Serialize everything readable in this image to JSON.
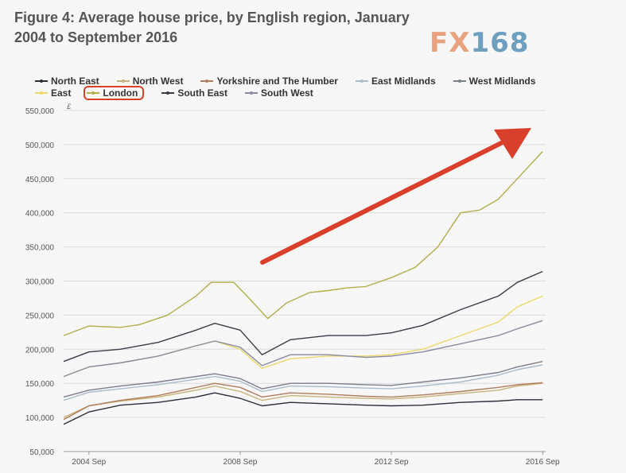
{
  "title": "Figure 4: Average house price, by English region, January 2004 to September 2016",
  "logo": {
    "fx": "FX",
    "num": "168"
  },
  "chart_data": {
    "type": "line",
    "title": "Figure 4: Average house price, by English region, January 2004 to September 2016",
    "ylabel": "£",
    "ylim": [
      50000,
      550000
    ],
    "yticks": [
      "50,000",
      "100,000",
      "150,000",
      "200,000",
      "250,000",
      "300,000",
      "350,000",
      "400,000",
      "450,000",
      "500,000",
      "550,000"
    ],
    "xticks": [
      "2004 Sep",
      "2008 Sep",
      "2012 Sep",
      "2016 Sep"
    ],
    "xlim": [
      2004.0,
      2016.75
    ],
    "xtick_values": [
      2004.67,
      2008.67,
      2012.67,
      2016.67
    ],
    "grid": true,
    "legend_position": "top",
    "annotations": [
      "arrow pointing up-right toward 2016 Sep",
      "London highlighted in legend"
    ],
    "series": [
      {
        "name": "North East",
        "color": "#2b2f3a",
        "points": [
          [
            2004.0,
            90000
          ],
          [
            2004.67,
            108000
          ],
          [
            2005.5,
            118000
          ],
          [
            2006.5,
            122000
          ],
          [
            2007.5,
            130000
          ],
          [
            2008.0,
            136000
          ],
          [
            2008.67,
            128000
          ],
          [
            2009.25,
            117000
          ],
          [
            2010.0,
            122000
          ],
          [
            2011.0,
            120000
          ],
          [
            2012.0,
            118000
          ],
          [
            2012.67,
            117000
          ],
          [
            2013.5,
            118000
          ],
          [
            2014.5,
            122000
          ],
          [
            2015.5,
            124000
          ],
          [
            2016.0,
            126000
          ],
          [
            2016.67,
            126000
          ]
        ]
      },
      {
        "name": "North West",
        "color": "#c9b27a",
        "points": [
          [
            2004.0,
            100000
          ],
          [
            2004.67,
            117000
          ],
          [
            2005.5,
            124000
          ],
          [
            2006.5,
            130000
          ],
          [
            2007.5,
            140000
          ],
          [
            2008.0,
            146000
          ],
          [
            2008.67,
            138000
          ],
          [
            2009.25,
            125000
          ],
          [
            2010.0,
            132000
          ],
          [
            2011.0,
            130000
          ],
          [
            2012.0,
            128000
          ],
          [
            2012.67,
            127000
          ],
          [
            2013.5,
            130000
          ],
          [
            2014.5,
            135000
          ],
          [
            2015.5,
            140000
          ],
          [
            2016.0,
            146000
          ],
          [
            2016.67,
            150000
          ]
        ]
      },
      {
        "name": "Yorkshire and The Humber",
        "color": "#b07c5a",
        "points": [
          [
            2004.0,
            97000
          ],
          [
            2004.67,
            117000
          ],
          [
            2005.5,
            125000
          ],
          [
            2006.5,
            132000
          ],
          [
            2007.5,
            144000
          ],
          [
            2008.0,
            150000
          ],
          [
            2008.67,
            144000
          ],
          [
            2009.25,
            130000
          ],
          [
            2010.0,
            136000
          ],
          [
            2011.0,
            134000
          ],
          [
            2012.0,
            131000
          ],
          [
            2012.67,
            130000
          ],
          [
            2013.5,
            133000
          ],
          [
            2014.5,
            138000
          ],
          [
            2015.5,
            144000
          ],
          [
            2016.0,
            148000
          ],
          [
            2016.67,
            151000
          ]
        ]
      },
      {
        "name": "East Midlands",
        "color": "#a9bccb",
        "points": [
          [
            2004.0,
            125000
          ],
          [
            2004.67,
            137000
          ],
          [
            2005.5,
            142000
          ],
          [
            2006.5,
            148000
          ],
          [
            2007.5,
            156000
          ],
          [
            2008.0,
            160000
          ],
          [
            2008.67,
            153000
          ],
          [
            2009.25,
            138000
          ],
          [
            2010.0,
            146000
          ],
          [
            2011.0,
            145000
          ],
          [
            2012.0,
            143000
          ],
          [
            2012.67,
            142000
          ],
          [
            2013.5,
            146000
          ],
          [
            2014.5,
            152000
          ],
          [
            2015.5,
            162000
          ],
          [
            2016.0,
            170000
          ],
          [
            2016.67,
            177000
          ]
        ]
      },
      {
        "name": "West Midlands",
        "color": "#7a7f8c",
        "points": [
          [
            2004.0,
            130000
          ],
          [
            2004.67,
            140000
          ],
          [
            2005.5,
            146000
          ],
          [
            2006.5,
            152000
          ],
          [
            2007.5,
            160000
          ],
          [
            2008.0,
            164000
          ],
          [
            2008.67,
            157000
          ],
          [
            2009.25,
            142000
          ],
          [
            2010.0,
            150000
          ],
          [
            2011.0,
            150000
          ],
          [
            2012.0,
            148000
          ],
          [
            2012.67,
            147000
          ],
          [
            2013.5,
            152000
          ],
          [
            2014.5,
            158000
          ],
          [
            2015.5,
            166000
          ],
          [
            2016.0,
            174000
          ],
          [
            2016.67,
            182000
          ]
        ]
      },
      {
        "name": "East",
        "color": "#ecd86a",
        "points": [
          [
            2004.0,
            160000
          ],
          [
            2004.67,
            174000
          ],
          [
            2005.5,
            180000
          ],
          [
            2006.5,
            190000
          ],
          [
            2007.5,
            205000
          ],
          [
            2008.0,
            212000
          ],
          [
            2008.67,
            200000
          ],
          [
            2009.25,
            172000
          ],
          [
            2010.0,
            186000
          ],
          [
            2011.0,
            190000
          ],
          [
            2012.0,
            190000
          ],
          [
            2012.67,
            192000
          ],
          [
            2013.5,
            200000
          ],
          [
            2014.5,
            220000
          ],
          [
            2015.5,
            240000
          ],
          [
            2016.0,
            262000
          ],
          [
            2016.67,
            278000
          ]
        ]
      },
      {
        "name": "London",
        "color": "#b3ad4a",
        "points": [
          [
            2004.0,
            220000
          ],
          [
            2004.67,
            234000
          ],
          [
            2005.5,
            232000
          ],
          [
            2006.0,
            236000
          ],
          [
            2006.75,
            250000
          ],
          [
            2007.5,
            278000
          ],
          [
            2007.9,
            298000
          ],
          [
            2008.5,
            298000
          ],
          [
            2008.9,
            275000
          ],
          [
            2009.4,
            245000
          ],
          [
            2009.9,
            268000
          ],
          [
            2010.5,
            283000
          ],
          [
            2011.0,
            286000
          ],
          [
            2011.5,
            290000
          ],
          [
            2012.0,
            292000
          ],
          [
            2012.67,
            305000
          ],
          [
            2013.3,
            320000
          ],
          [
            2013.9,
            350000
          ],
          [
            2014.5,
            400000
          ],
          [
            2015.0,
            404000
          ],
          [
            2015.5,
            420000
          ],
          [
            2016.0,
            450000
          ],
          [
            2016.67,
            490000
          ]
        ]
      },
      {
        "name": "South East",
        "color": "#3a3d48",
        "points": [
          [
            2004.0,
            182000
          ],
          [
            2004.67,
            196000
          ],
          [
            2005.5,
            200000
          ],
          [
            2006.5,
            210000
          ],
          [
            2007.5,
            228000
          ],
          [
            2008.0,
            238000
          ],
          [
            2008.67,
            228000
          ],
          [
            2009.25,
            192000
          ],
          [
            2010.0,
            214000
          ],
          [
            2011.0,
            220000
          ],
          [
            2012.0,
            220000
          ],
          [
            2012.67,
            224000
          ],
          [
            2013.5,
            235000
          ],
          [
            2014.5,
            258000
          ],
          [
            2015.5,
            278000
          ],
          [
            2016.0,
            298000
          ],
          [
            2016.67,
            314000
          ]
        ]
      },
      {
        "name": "South West",
        "color": "#8a8aa3",
        "points": [
          [
            2004.0,
            160000
          ],
          [
            2004.67,
            174000
          ],
          [
            2005.5,
            180000
          ],
          [
            2006.5,
            190000
          ],
          [
            2007.5,
            205000
          ],
          [
            2008.0,
            212000
          ],
          [
            2008.67,
            203000
          ],
          [
            2009.25,
            176000
          ],
          [
            2010.0,
            192000
          ],
          [
            2011.0,
            192000
          ],
          [
            2012.0,
            188000
          ],
          [
            2012.67,
            190000
          ],
          [
            2013.5,
            196000
          ],
          [
            2014.5,
            208000
          ],
          [
            2015.5,
            220000
          ],
          [
            2016.0,
            230000
          ],
          [
            2016.67,
            242000
          ]
        ]
      }
    ]
  },
  "legend_rows": [
    [
      "North East",
      "North West",
      "Yorkshire and The Humber",
      "East Midlands",
      "West Midlands"
    ],
    [
      "East",
      "London",
      "South East",
      "South West"
    ]
  ],
  "highlight": "London",
  "arrow_color": "#d9402c"
}
